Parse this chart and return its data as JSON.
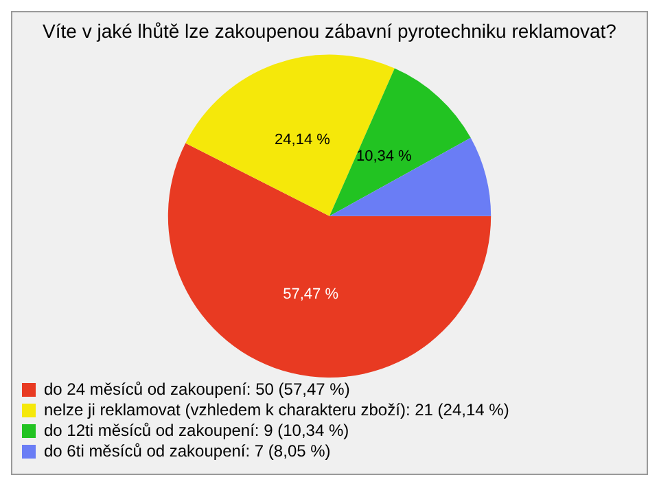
{
  "chart_data": {
    "type": "pie",
    "title": "Víte v jaké lhůtě lze zakoupenou zábavní pyrotechniku reklamovat?",
    "categories": [
      "do 24 měsíců od zakoupení: 50 (57,47 %)",
      "nelze ji reklamovat (vzhledem k charakteru zboží): 21 (24,14 %)",
      "do 12ti měsíců od zakoupení: 9 (10,34 %)",
      "do 6ti měsíců od zakoupení: 7 (8,05 %)"
    ],
    "values": [
      57.47,
      24.14,
      10.34,
      8.05
    ],
    "colors": [
      "#e83a22",
      "#f5e80a",
      "#22c322",
      "#6a7df5"
    ],
    "value_labels": [
      "57,47 %",
      "24,14 %",
      "10,34 %",
      null
    ],
    "legend": "bottom"
  }
}
